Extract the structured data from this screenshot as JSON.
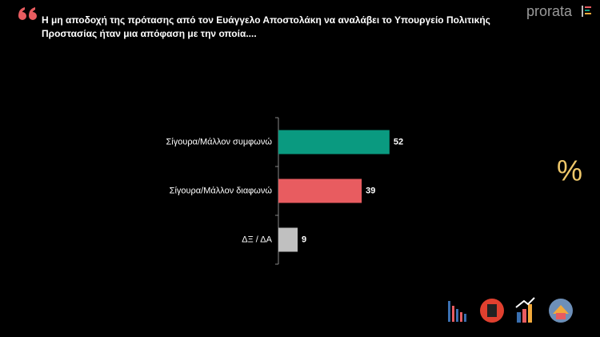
{
  "chart_data": {
    "type": "bar",
    "orientation": "horizontal",
    "title": "Η μη αποδοχή της πρότασης από τον Ευάγγελο Αποστολάκη να αναλάβει το Υπουργείο Πολιτικής Προστασίας ήταν μια απόφαση με την οποία....",
    "categories": [
      "Σίγουρα/Μάλλον συμφωνώ",
      "Σίγουρα/Μάλλον διαφωνώ",
      "ΔΞ / ΔΑ"
    ],
    "values": [
      52,
      39,
      9
    ],
    "colors": [
      "#0a9a80",
      "#e85c60",
      "#c0c0c0"
    ]
  },
  "brand": "prorata",
  "badge": "%"
}
